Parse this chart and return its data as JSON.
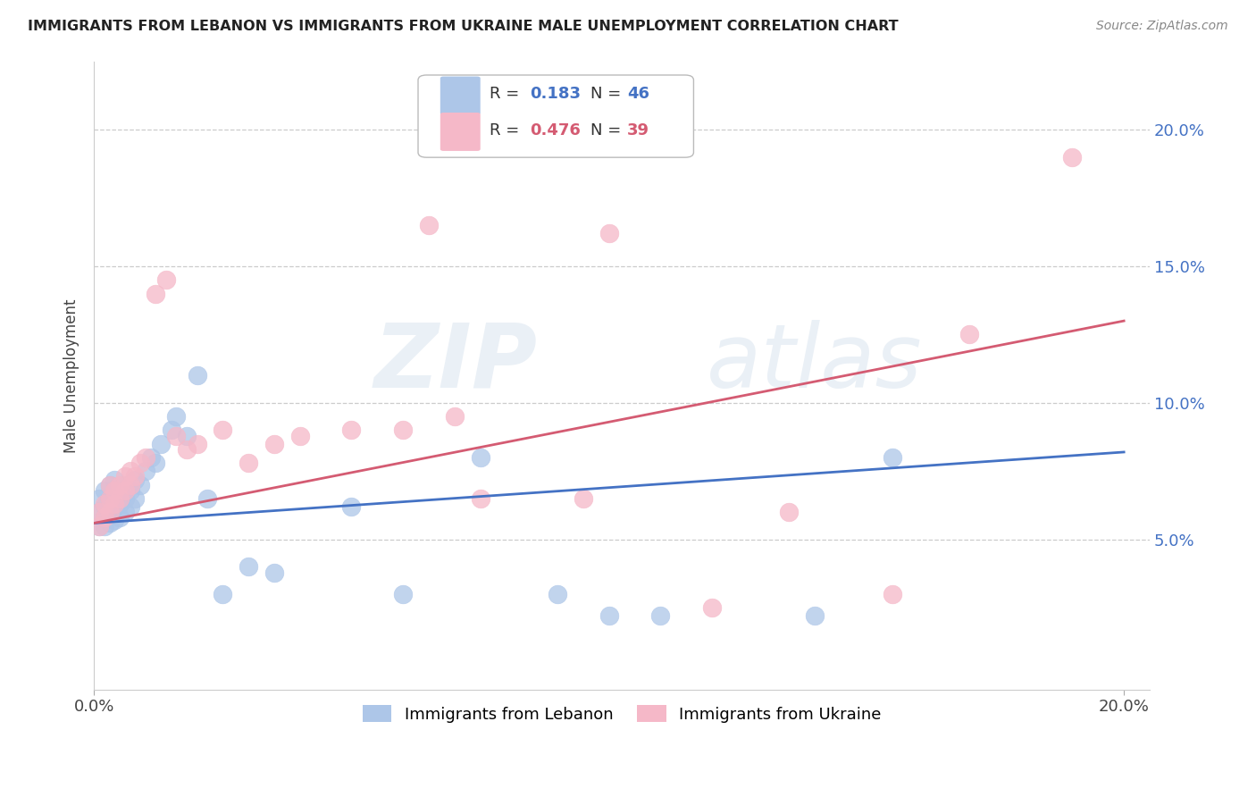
{
  "title": "IMMIGRANTS FROM LEBANON VS IMMIGRANTS FROM UKRAINE MALE UNEMPLOYMENT CORRELATION CHART",
  "source": "Source: ZipAtlas.com",
  "ylabel": "Male Unemployment",
  "xlim": [
    0.0,
    0.205
  ],
  "ylim": [
    -0.005,
    0.225
  ],
  "ytick_vals": [
    0.05,
    0.1,
    0.15,
    0.2
  ],
  "ytick_labels": [
    "5.0%",
    "10.0%",
    "15.0%",
    "20.0%"
  ],
  "xtick_vals": [
    0.0,
    0.2
  ],
  "xtick_labels": [
    "0.0%",
    "20.0%"
  ],
  "legend_labels": [
    "Immigrants from Lebanon",
    "Immigrants from Ukraine"
  ],
  "R_lebanon": 0.183,
  "N_lebanon": 46,
  "R_ukraine": 0.476,
  "N_ukraine": 39,
  "lebanon_color": "#adc6e8",
  "ukraine_color": "#f5b8c8",
  "lebanon_line_color": "#4472c4",
  "ukraine_line_color": "#d45b72",
  "background_color": "#ffffff",
  "lebanon_line_start_y": 0.056,
  "lebanon_line_end_y": 0.082,
  "ukraine_line_start_y": 0.056,
  "ukraine_line_end_y": 0.13,
  "lebanon_x": [
    0.001,
    0.001,
    0.001,
    0.002,
    0.002,
    0.002,
    0.002,
    0.003,
    0.003,
    0.003,
    0.003,
    0.004,
    0.004,
    0.004,
    0.004,
    0.005,
    0.005,
    0.005,
    0.006,
    0.006,
    0.006,
    0.007,
    0.007,
    0.008,
    0.008,
    0.009,
    0.01,
    0.011,
    0.012,
    0.013,
    0.015,
    0.016,
    0.018,
    0.02,
    0.022,
    0.025,
    0.03,
    0.035,
    0.05,
    0.06,
    0.075,
    0.09,
    0.1,
    0.11,
    0.14,
    0.155
  ],
  "lebanon_y": [
    0.055,
    0.06,
    0.065,
    0.055,
    0.058,
    0.062,
    0.068,
    0.056,
    0.06,
    0.065,
    0.07,
    0.057,
    0.062,
    0.067,
    0.072,
    0.058,
    0.063,
    0.068,
    0.06,
    0.065,
    0.07,
    0.062,
    0.068,
    0.065,
    0.072,
    0.07,
    0.075,
    0.08,
    0.078,
    0.085,
    0.09,
    0.095,
    0.088,
    0.11,
    0.065,
    0.03,
    0.04,
    0.038,
    0.062,
    0.03,
    0.08,
    0.03,
    0.022,
    0.022,
    0.022,
    0.08
  ],
  "ukraine_x": [
    0.001,
    0.001,
    0.002,
    0.002,
    0.003,
    0.003,
    0.003,
    0.004,
    0.004,
    0.005,
    0.005,
    0.006,
    0.006,
    0.007,
    0.007,
    0.008,
    0.009,
    0.01,
    0.012,
    0.014,
    0.016,
    0.018,
    0.02,
    0.025,
    0.03,
    0.035,
    0.04,
    0.05,
    0.06,
    0.065,
    0.07,
    0.075,
    0.095,
    0.1,
    0.12,
    0.135,
    0.155,
    0.17,
    0.19
  ],
  "ukraine_y": [
    0.055,
    0.06,
    0.058,
    0.063,
    0.06,
    0.065,
    0.07,
    0.063,
    0.068,
    0.065,
    0.07,
    0.068,
    0.073,
    0.07,
    0.075,
    0.073,
    0.078,
    0.08,
    0.14,
    0.145,
    0.088,
    0.083,
    0.085,
    0.09,
    0.078,
    0.085,
    0.088,
    0.09,
    0.09,
    0.165,
    0.095,
    0.065,
    0.065,
    0.162,
    0.025,
    0.06,
    0.03,
    0.125,
    0.19
  ]
}
